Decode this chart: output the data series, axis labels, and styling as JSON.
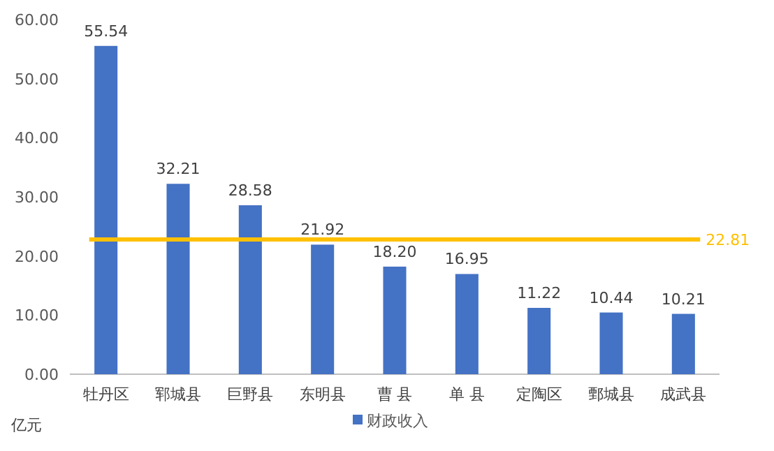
{
  "chart_data": {
    "type": "bar",
    "ylabel": "亿元",
    "categories": [
      "牡丹区",
      "郓城县",
      "巨野县",
      "东明县",
      "曹 县",
      "单 县",
      "定陶区",
      "鄄城县",
      "成武县"
    ],
    "series": [
      {
        "name": "财政收入",
        "color": "#4472c4",
        "values": [
          55.54,
          32.21,
          28.58,
          21.92,
          18.2,
          16.95,
          11.22,
          10.44,
          10.21
        ],
        "value_labels": [
          "55.54",
          "32.21",
          "28.58",
          "21.92",
          "18.20",
          "16.95",
          "11.22",
          "10.44",
          "10.21"
        ]
      }
    ],
    "ylim": [
      0,
      60
    ],
    "yticks": [
      {
        "value": 0,
        "label": "0.00"
      },
      {
        "value": 10,
        "label": "10.00"
      },
      {
        "value": 20,
        "label": "20.00"
      },
      {
        "value": 30,
        "label": "30.00"
      },
      {
        "value": 40,
        "label": "40.00"
      },
      {
        "value": 50,
        "label": "50.00"
      },
      {
        "value": 60,
        "label": "60.00"
      }
    ],
    "ref_lines": [
      {
        "axis": "y",
        "value": 22.81,
        "label": "22.81",
        "color": "#ffc000"
      }
    ],
    "legend": "bottom",
    "grid": false
  }
}
